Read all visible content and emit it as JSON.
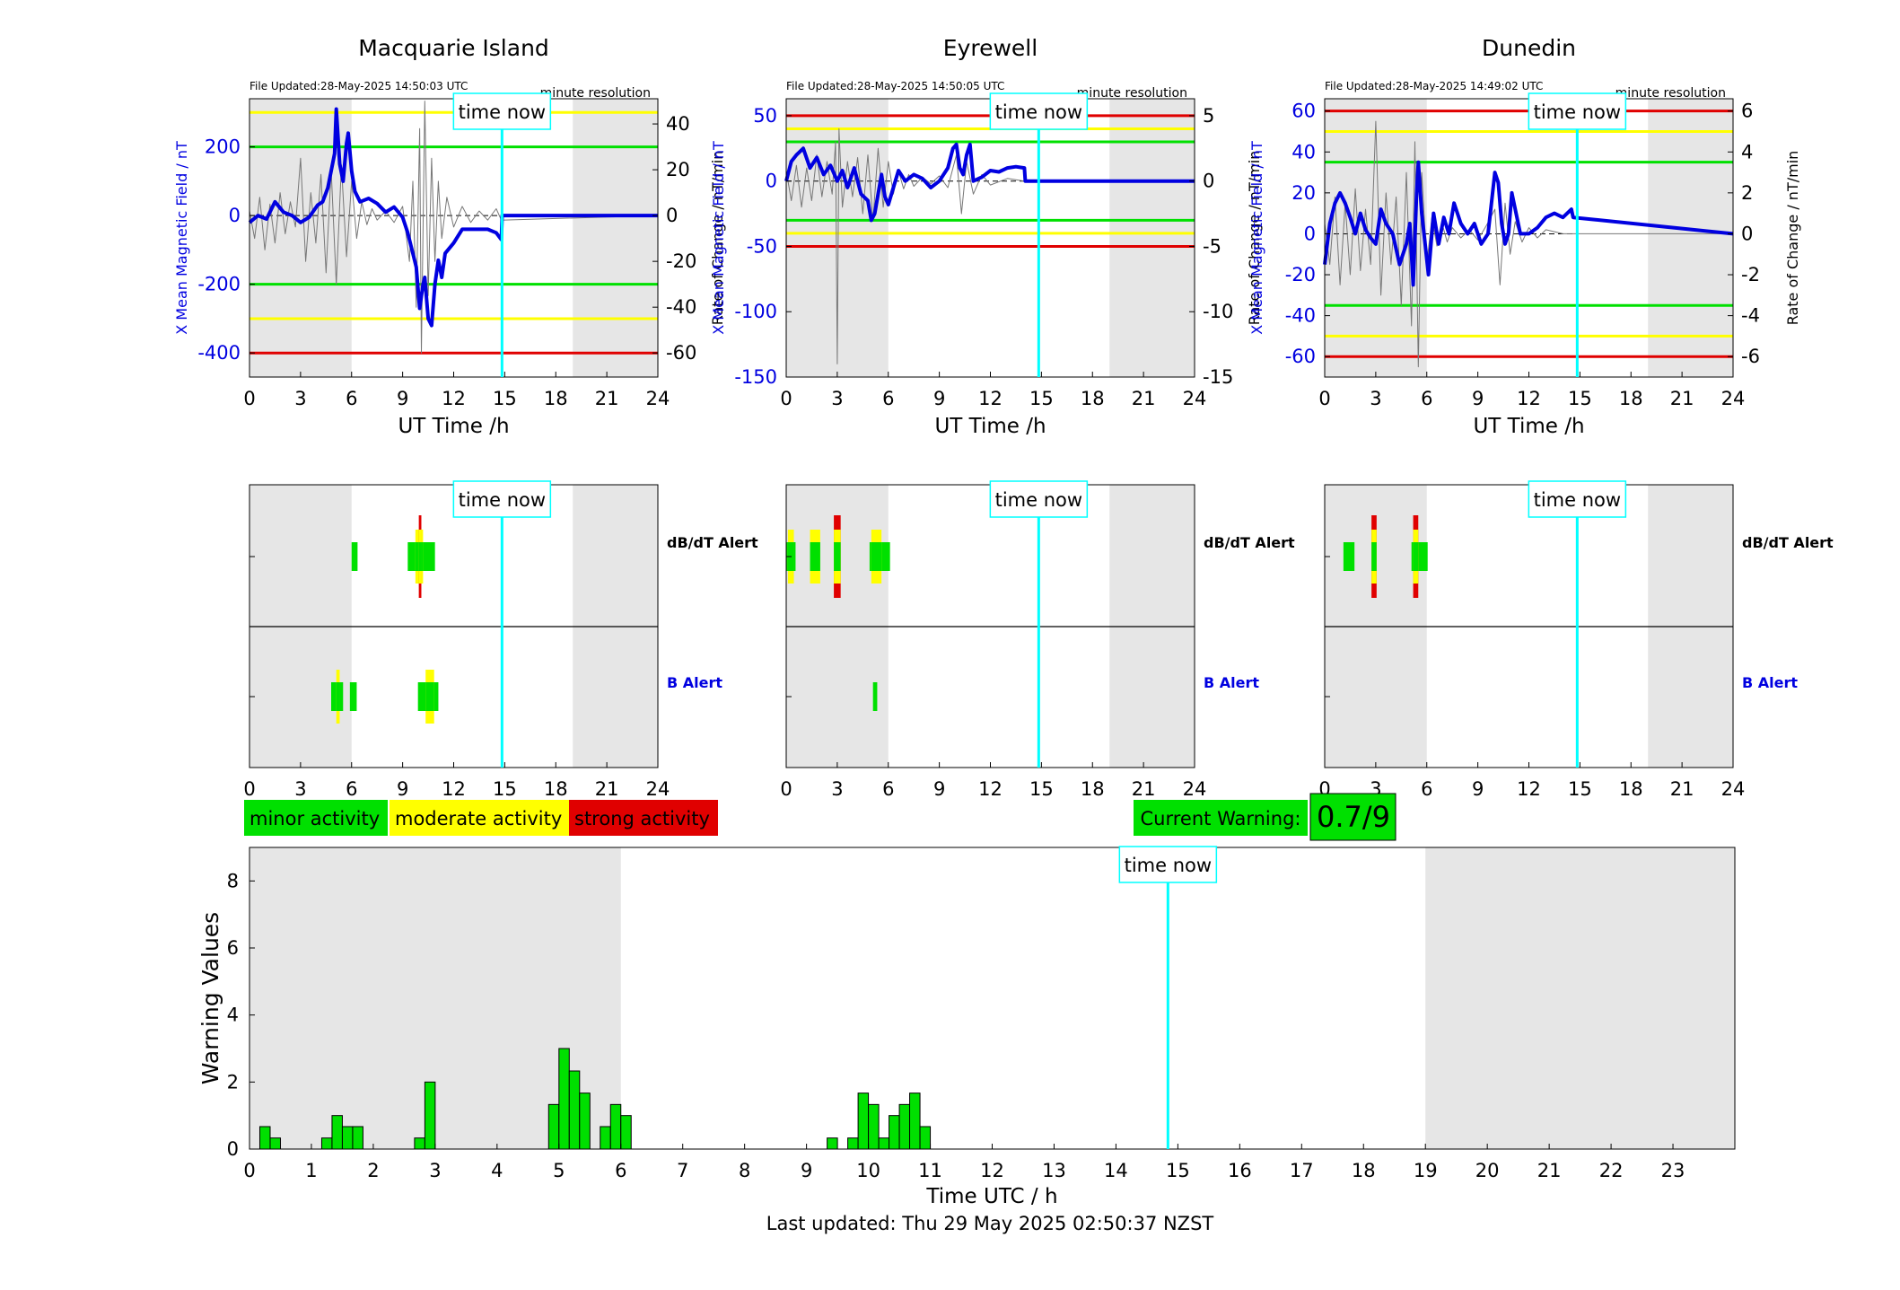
{
  "footer": "Last updated: Thu 29 May 2025 02:50:37 NZST",
  "time_now_label": "time now",
  "time_now_hour": 14.84,
  "chart_data": [
    {
      "type": "line",
      "title": "Macquarie Island",
      "file_updated": "File Updated:28-May-2025 14:50:03 UTC",
      "resolution": "minute resolution",
      "xlabel": "UT Time /h",
      "ylabel": "X Mean Magnetic Field / nT",
      "y2label": "Rate of Change / nT/min",
      "xlim": [
        0,
        24
      ],
      "xticks": [
        0,
        3,
        6,
        9,
        12,
        15,
        18,
        21,
        24
      ],
      "ylim": [
        -470,
        340
      ],
      "yticks": [
        -400,
        -200,
        0,
        200
      ],
      "y2lim": [
        -70.5,
        51
      ],
      "y2ticks": [
        -60,
        -40,
        -20,
        0,
        20,
        40
      ],
      "shade": [
        [
          0,
          6
        ],
        [
          19,
          24
        ]
      ],
      "thresholds": [
        {
          "level": "minor",
          "color": "#00e000",
          "values": [
            200,
            -200
          ]
        },
        {
          "level": "moderate",
          "color": "#ffff00",
          "values": [
            300,
            -300
          ]
        },
        {
          "level": "strong",
          "color": "#e00000",
          "values": [
            -400
          ]
        }
      ],
      "series": [
        {
          "color": "#0000e0",
          "width": 4,
          "x": [
            0,
            0.5,
            1,
            1.5,
            2,
            2.5,
            3,
            3.5,
            4,
            4.3,
            4.6,
            5,
            5.1,
            5.3,
            5.5,
            5.7,
            5.8,
            6,
            6.2,
            6.5,
            7,
            7.5,
            8,
            8.5,
            9,
            9.3,
            9.6,
            9.8,
            10,
            10.2,
            10.3,
            10.5,
            10.7,
            10.9,
            11.1,
            11.3,
            11.5,
            12,
            12.5,
            13,
            13.5,
            14,
            14.5,
            14.8,
            14.85,
            24
          ],
          "y": [
            -20,
            0,
            -10,
            40,
            10,
            0,
            -20,
            -5,
            30,
            40,
            80,
            180,
            310,
            150,
            100,
            210,
            240,
            130,
            70,
            40,
            50,
            35,
            10,
            25,
            -5,
            -50,
            -110,
            -150,
            -270,
            -200,
            -180,
            -300,
            -320,
            -200,
            -130,
            -180,
            -110,
            -80,
            -40,
            -40,
            -40,
            -40,
            -50,
            -70,
            0,
            0
          ]
        },
        {
          "color": "#777777",
          "width": 1,
          "axis": "y2",
          "x": [
            0,
            0.3,
            0.6,
            0.9,
            1.2,
            1.5,
            1.8,
            2.1,
            2.4,
            2.7,
            3,
            3.3,
            3.6,
            3.9,
            4.2,
            4.5,
            4.8,
            5.1,
            5.4,
            5.7,
            6,
            6.3,
            6.6,
            6.9,
            7.2,
            7.5,
            8,
            8.5,
            9,
            9.4,
            9.6,
            9.8,
            10,
            10.1,
            10.3,
            10.5,
            10.7,
            10.9,
            11.1,
            11.3,
            11.6,
            12,
            12.5,
            13,
            13.5,
            14,
            14.5,
            14.8,
            24
          ],
          "y": [
            2,
            -10,
            8,
            -15,
            5,
            -12,
            10,
            -8,
            6,
            -5,
            25,
            -20,
            10,
            -12,
            18,
            -25,
            20,
            -30,
            22,
            -18,
            15,
            -10,
            6,
            -4,
            3,
            -2,
            2,
            -3,
            4,
            -20,
            15,
            -40,
            38,
            -60,
            50,
            -35,
            25,
            -20,
            15,
            -10,
            8,
            -5,
            4,
            -3,
            2,
            -2,
            3,
            -2,
            0
          ]
        }
      ],
      "alert_rows": [
        {
          "label": "dB/dT Alert",
          "blocks": [
            {
              "start": 6.0,
              "end": 6.35,
              "colors": [
                "#00e000"
              ]
            },
            {
              "start": 9.3,
              "end": 10.9,
              "colors": [
                "#00e000"
              ]
            },
            {
              "start": 9.75,
              "end": 10.2,
              "colors": [
                "#ffff00",
                "#00e000"
              ]
            },
            {
              "start": 9.95,
              "end": 10.1,
              "colors": [
                "#e00000",
                "#ffff00",
                "#00e000"
              ]
            }
          ]
        },
        {
          "label": "B Alert",
          "blocks": [
            {
              "start": 4.8,
              "end": 5.5,
              "colors": [
                "#00e000"
              ]
            },
            {
              "start": 5.1,
              "end": 5.3,
              "colors": [
                "#ffff00",
                "#00e000"
              ]
            },
            {
              "start": 5.9,
              "end": 6.3,
              "colors": [
                "#00e000"
              ]
            },
            {
              "start": 9.9,
              "end": 11.1,
              "colors": [
                "#00e000"
              ]
            },
            {
              "start": 10.35,
              "end": 10.85,
              "colors": [
                "#ffff00",
                "#00e000"
              ]
            }
          ]
        }
      ]
    },
    {
      "type": "line",
      "title": "Eyrewell",
      "file_updated": "File Updated:28-May-2025 14:50:05 UTC",
      "resolution": "minute resolution",
      "xlabel": "UT Time /h",
      "ylabel": "X Mean Magnetic Field / nT",
      "y2label": "Rate of Change / nT/min",
      "xlim": [
        0,
        24
      ],
      "xticks": [
        0,
        3,
        6,
        9,
        12,
        15,
        18,
        21,
        24
      ],
      "ylim": [
        -150,
        63
      ],
      "yticks": [
        -150,
        -100,
        -50,
        0,
        50
      ],
      "y2lim": [
        -15,
        6.3
      ],
      "y2ticks": [
        -15,
        -10,
        -5,
        0,
        5
      ],
      "shade": [
        [
          0,
          6
        ],
        [
          19,
          24
        ]
      ],
      "thresholds": [
        {
          "level": "minor",
          "color": "#00e000",
          "values": [
            30,
            -30
          ]
        },
        {
          "level": "moderate",
          "color": "#ffff00",
          "values": [
            40,
            -40
          ]
        },
        {
          "level": "strong",
          "color": "#e00000",
          "values": [
            50,
            -50
          ]
        }
      ],
      "series": [
        {
          "color": "#0000e0",
          "width": 4,
          "x": [
            0,
            0.3,
            0.6,
            1,
            1.4,
            1.8,
            2.2,
            2.6,
            3,
            3.3,
            3.6,
            4,
            4.4,
            4.8,
            5,
            5.2,
            5.4,
            5.6,
            5.8,
            6,
            6.3,
            6.6,
            7,
            7.5,
            8,
            8.5,
            9,
            9.5,
            9.8,
            10,
            10.2,
            10.4,
            10.6,
            10.8,
            11,
            11.5,
            12,
            12.5,
            13,
            13.5,
            14,
            14.05,
            24
          ],
          "y": [
            0,
            15,
            20,
            25,
            10,
            18,
            5,
            12,
            0,
            8,
            -5,
            10,
            -10,
            -15,
            -30,
            -25,
            -10,
            5,
            -12,
            -18,
            -5,
            8,
            0,
            5,
            2,
            -5,
            0,
            10,
            25,
            28,
            10,
            5,
            20,
            28,
            0,
            3,
            8,
            7,
            10,
            11,
            10,
            0,
            0
          ]
        },
        {
          "color": "#777777",
          "width": 1,
          "axis": "y2",
          "x": [
            0,
            0.3,
            0.6,
            0.9,
            1.2,
            1.5,
            1.8,
            2.1,
            2.4,
            2.7,
            2.9,
            3,
            3.1,
            3.3,
            3.6,
            3.9,
            4.2,
            4.5,
            4.8,
            5.1,
            5.4,
            5.7,
            6,
            6.3,
            6.6,
            6.9,
            7.2,
            7.5,
            8,
            8.5,
            9,
            9.5,
            10,
            10.3,
            10.6,
            11,
            11.5,
            12,
            13,
            14,
            24
          ],
          "y": [
            0.8,
            -1.5,
            1.2,
            -2,
            1,
            -1.5,
            2,
            -1.2,
            1.5,
            -1,
            3,
            -14,
            4,
            -2,
            1.5,
            -1.2,
            1.8,
            -2.5,
            2,
            -3,
            2.5,
            -2,
            1.5,
            -1,
            0.8,
            -0.6,
            0.5,
            -0.4,
            0.3,
            -0.2,
            0.4,
            -0.5,
            2,
            -2.5,
            1.5,
            -1,
            0.5,
            -0.3,
            0.2,
            0,
            0
          ]
        }
      ],
      "alert_rows": [
        {
          "label": "dB/dT Alert",
          "blocks": [
            {
              "start": 0.0,
              "end": 0.55,
              "colors": [
                "#00e000"
              ]
            },
            {
              "start": 0.1,
              "end": 0.45,
              "colors": [
                "#ffff00",
                "#00e000"
              ]
            },
            {
              "start": 1.4,
              "end": 2.0,
              "colors": [
                "#ffff00",
                "#00e000"
              ]
            },
            {
              "start": 2.8,
              "end": 3.2,
              "colors": [
                "#e00000",
                "#ffff00",
                "#00e000"
              ]
            },
            {
              "start": 4.9,
              "end": 6.1,
              "colors": [
                "#00e000"
              ]
            },
            {
              "start": 5.0,
              "end": 5.6,
              "colors": [
                "#ffff00",
                "#00e000"
              ]
            }
          ]
        },
        {
          "label": "B Alert",
          "blocks": [
            {
              "start": 5.1,
              "end": 5.35,
              "colors": [
                "#00e000"
              ]
            }
          ]
        }
      ]
    },
    {
      "type": "line",
      "title": "Dunedin",
      "file_updated": "File Updated:28-May-2025 14:49:02 UTC",
      "resolution": "minute resolution",
      "xlabel": "UT Time /h",
      "ylabel": "X Mean Magnetic Field / nT",
      "y2label": "Rate of Change / nT/min",
      "xlim": [
        0,
        24
      ],
      "xticks": [
        0,
        3,
        6,
        9,
        12,
        15,
        18,
        21,
        24
      ],
      "ylim": [
        -70,
        66
      ],
      "yticks": [
        -60,
        -40,
        -20,
        0,
        20,
        40,
        60
      ],
      "y2lim": [
        -7,
        6.6
      ],
      "y2ticks": [
        -6,
        -4,
        -2,
        0,
        2,
        4,
        6
      ],
      "shade": [
        [
          0,
          6
        ],
        [
          19,
          24
        ]
      ],
      "thresholds": [
        {
          "level": "minor",
          "color": "#00e000",
          "values": [
            35,
            -35
          ]
        },
        {
          "level": "moderate",
          "color": "#ffff00",
          "values": [
            50,
            -50
          ]
        },
        {
          "level": "strong",
          "color": "#e00000",
          "values": [
            60,
            -60
          ]
        }
      ],
      "series": [
        {
          "color": "#0000e0",
          "width": 4,
          "x": [
            0,
            0.3,
            0.6,
            0.9,
            1.2,
            1.5,
            1.8,
            2.1,
            2.4,
            2.7,
            3,
            3.3,
            3.6,
            4,
            4.4,
            4.8,
            5,
            5.2,
            5.4,
            5.5,
            5.7,
            5.9,
            6.1,
            6.4,
            6.7,
            7,
            7.3,
            7.6,
            8,
            8.4,
            8.8,
            9.2,
            9.6,
            9.8,
            10,
            10.2,
            10.4,
            10.6,
            10.8,
            11,
            11.5,
            12,
            12.5,
            13,
            13.5,
            14,
            14.5,
            14.6,
            24
          ],
          "y": [
            -15,
            5,
            15,
            20,
            15,
            8,
            0,
            10,
            2,
            -2,
            -5,
            12,
            5,
            0,
            -15,
            -5,
            5,
            -25,
            20,
            35,
            10,
            -5,
            -20,
            10,
            -5,
            8,
            0,
            15,
            5,
            0,
            5,
            -5,
            0,
            15,
            30,
            25,
            5,
            -5,
            0,
            20,
            0,
            0,
            3,
            8,
            10,
            8,
            12,
            8,
            0
          ]
        },
        {
          "color": "#777777",
          "width": 1,
          "axis": "y2",
          "x": [
            0,
            0.3,
            0.6,
            0.9,
            1.2,
            1.5,
            1.8,
            2.1,
            2.4,
            2.7,
            3,
            3.3,
            3.6,
            3.9,
            4.2,
            4.5,
            4.8,
            5.1,
            5.3,
            5.5,
            5.7,
            6,
            6.3,
            6.6,
            6.9,
            7.2,
            7.5,
            8,
            8.5,
            9,
            9.5,
            10,
            10.3,
            10.6,
            10.9,
            11.2,
            11.6,
            12,
            12.5,
            13,
            14,
            24
          ],
          "y": [
            0.5,
            -1.5,
            1.8,
            -2.5,
            1.5,
            -2,
            2.2,
            -1.8,
            1.2,
            -1.5,
            5.5,
            -3,
            2,
            -1.5,
            1.8,
            -3.5,
            3,
            -4.5,
            4.5,
            -6.5,
            3,
            -1.5,
            0.8,
            -0.6,
            0.5,
            -0.4,
            0.3,
            -0.2,
            0.2,
            -0.3,
            0.4,
            1.2,
            -2.5,
            1.5,
            -1,
            0.6,
            -0.4,
            0.3,
            -0.2,
            0.2,
            0,
            0
          ]
        }
      ],
      "alert_rows": [
        {
          "label": "dB/dT Alert",
          "blocks": [
            {
              "start": 1.1,
              "end": 1.75,
              "colors": [
                "#00e000"
              ]
            },
            {
              "start": 2.75,
              "end": 3.05,
              "colors": [
                "#e00000",
                "#ffff00",
                "#00e000"
              ]
            },
            {
              "start": 5.1,
              "end": 6.05,
              "colors": [
                "#00e000"
              ]
            },
            {
              "start": 5.2,
              "end": 5.5,
              "colors": [
                "#e00000",
                "#ffff00",
                "#00e000"
              ]
            }
          ]
        },
        {
          "label": "B Alert",
          "blocks": []
        }
      ]
    },
    {
      "type": "bar",
      "xlabel": "Time UTC / h",
      "ylabel": "Warning Values",
      "xlim": [
        0,
        24
      ],
      "xticks": [
        0,
        1,
        2,
        3,
        4,
        5,
        6,
        7,
        8,
        9,
        10,
        11,
        12,
        13,
        14,
        15,
        16,
        17,
        18,
        19,
        20,
        21,
        22,
        23
      ],
      "ylim": [
        0,
        9
      ],
      "yticks": [
        0,
        2,
        4,
        6,
        8
      ],
      "shade": [
        [
          0,
          6
        ],
        [
          19,
          24
        ]
      ],
      "bar_width": 0.1667,
      "x": [
        0.0,
        0.1667,
        0.3333,
        1.1667,
        1.3333,
        1.5,
        1.6667,
        2.6667,
        2.8333,
        4.8333,
        5.0,
        5.1667,
        5.3333,
        5.6667,
        5.8333,
        6.0,
        9.3333,
        9.6667,
        9.8333,
        10.0,
        10.1667,
        10.3333,
        10.5,
        10.6667,
        10.8333
      ],
      "values": [
        0.0,
        0.67,
        0.33,
        0.33,
        1.0,
        0.67,
        0.67,
        0.33,
        2.0,
        1.33,
        3.0,
        2.33,
        1.67,
        0.67,
        1.33,
        1.0,
        0.33,
        0.33,
        1.67,
        1.33,
        0.33,
        1.0,
        1.33,
        1.67,
        0.67
      ],
      "legend": [
        {
          "label": "minor activity",
          "color": "#00e000"
        },
        {
          "label": "moderate activity",
          "color": "#ffff00"
        },
        {
          "label": "strong activity",
          "color": "#e00000"
        }
      ],
      "current_warning_label": "Current Warning:",
      "current_warning_value": "0.7/9"
    }
  ]
}
